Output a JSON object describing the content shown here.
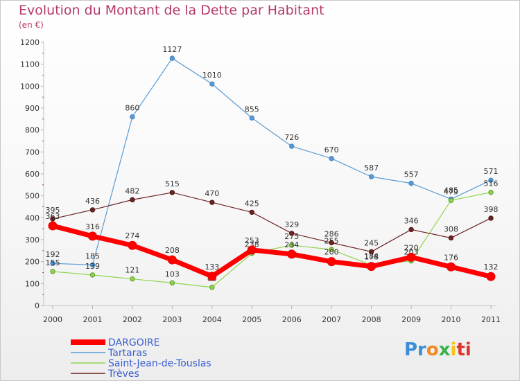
{
  "title": "Evolution du Montant de la Dette par Habitant",
  "subtitle": "(en €)",
  "logo_letters": [
    "Pr",
    "o",
    "x",
    "i",
    "ti"
  ],
  "chart_data": {
    "type": "line",
    "categories": [
      "2000",
      "2001",
      "2002",
      "2003",
      "2004",
      "2005",
      "2006",
      "2007",
      "2008",
      "2009",
      "2010",
      "2011"
    ],
    "ylim": [
      0,
      1200
    ],
    "yticks": [
      0,
      100,
      200,
      300,
      400,
      500,
      600,
      700,
      800,
      900,
      1000,
      1100,
      1200
    ],
    "grid": false,
    "legend_position": "bottom-left",
    "series": [
      {
        "name": "Tartaras",
        "color": "#5a9bd4",
        "values": [
          192,
          185,
          860,
          1127,
          1010,
          855,
          726,
          670,
          587,
          557,
          485,
          571
        ]
      },
      {
        "name": "Saint-Jean-de-Touslas",
        "color": "#8fd44e",
        "values": [
          155,
          139,
          121,
          103,
          83,
          238,
          275,
          255,
          184,
          203,
          479,
          516
        ]
      },
      {
        "name": "Trèves",
        "color": "#6e2323",
        "values": [
          395,
          436,
          482,
          515,
          470,
          425,
          329,
          286,
          245,
          346,
          308,
          398
        ]
      },
      {
        "name": "DARGOIRE",
        "color": "#ff0000",
        "values": [
          363,
          316,
          274,
          208,
          133,
          253,
          234,
          200,
          178,
          220,
          176,
          132
        ]
      }
    ],
    "legend_order": [
      "DARGOIRE",
      "Tartaras",
      "Saint-Jean-de-Touslas",
      "Trèves"
    ]
  }
}
